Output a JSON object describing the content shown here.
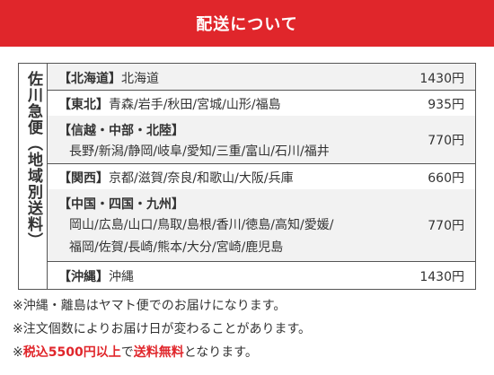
{
  "header": {
    "title": "配送について"
  },
  "side_label": "佐川急便（地域別送料）",
  "regions": [
    {
      "name": "【北海道】",
      "lines": [
        "北海道"
      ],
      "price": "1430円",
      "shade": "alt"
    },
    {
      "name": "【東北】",
      "lines": [
        "青森/岩手/秋田/宮城/山形/福島"
      ],
      "price": "935円",
      "shade": "plain"
    },
    {
      "name": "【信越・中部・北陸】",
      "lines": [
        "長野/新潟/静岡/岐阜/愛知/三重/富山/石川/福井"
      ],
      "price": "770円",
      "shade": "alt"
    },
    {
      "name": "【関西】",
      "lines": [
        "京都/滋賀/奈良/和歌山/大阪/兵庫"
      ],
      "price": "660円",
      "shade": "plain"
    },
    {
      "name": "【中国・四国・九州】",
      "lines": [
        "岡山/広島/山口/鳥取/島根/香川/徳島/高知/愛媛/",
        "福岡/佐賀/長崎/熊本/大分/宮崎/鹿児島"
      ],
      "price": "770円",
      "shade": "alt"
    },
    {
      "name": "【沖縄】",
      "lines": [
        "沖縄"
      ],
      "price": "1430円",
      "shade": "plain"
    }
  ],
  "notes": {
    "n1": "※沖縄・離島はヤマト便でのお届けになります。",
    "n2": "※注文個数によりお届け日が変わることがあります。",
    "n3_prefix": "※",
    "n3_red1": "税込5500円以上",
    "n3_mid": "で",
    "n3_red2": "送料無料",
    "n3_suffix": "となります。"
  }
}
